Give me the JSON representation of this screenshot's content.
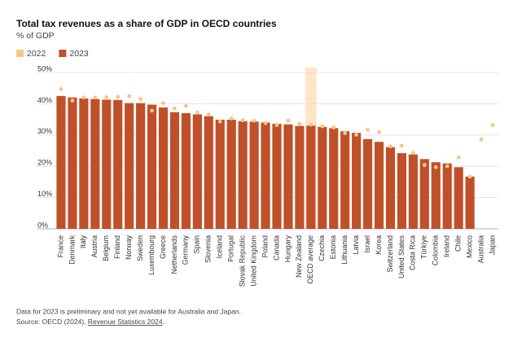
{
  "chart_data": {
    "type": "bar",
    "title": "Total tax revenues as a share of GDP in OECD countries",
    "subtitle": "% of GDP",
    "categories": [
      "France",
      "Denmark",
      "Italy",
      "Austria",
      "Belgium",
      "Finland",
      "Norway",
      "Sweden",
      "Luxembourg",
      "Greece",
      "Netherlands",
      "Germany",
      "Spain",
      "Slovenia",
      "Iceland",
      "Portugal",
      "Slovak Republic",
      "United Kingdom",
      "Poland",
      "Canada",
      "Hungary",
      "New Zealand",
      "OECD average",
      "Czechia",
      "Estonia",
      "Lithuania",
      "Latvia",
      "Israel",
      "Korea",
      "Switzerland",
      "United States",
      "Costa Rica",
      "Türkiye",
      "Colombia",
      "Ireland",
      "Chile",
      "Mexico",
      "Australia",
      "Japan"
    ],
    "series": [
      {
        "name": "2022",
        "color": "#f5c77e",
        "mark": "dot",
        "values": [
          44.7,
          41.0,
          42.0,
          42.0,
          42.1,
          42.2,
          42.4,
          41.5,
          37.8,
          40.2,
          38.5,
          39.3,
          37.2,
          36.6,
          34.3,
          35.3,
          34.7,
          34.6,
          33.8,
          33.2,
          34.6,
          33.6,
          33.3,
          32.8,
          32.4,
          30.6,
          30.1,
          31.7,
          30.9,
          26.4,
          26.6,
          24.3,
          20.4,
          19.7,
          20.0,
          22.8,
          16.7,
          28.6,
          33.2
        ]
      },
      {
        "name": "2023",
        "color": "#c0502a",
        "mark": "bar",
        "values": [
          42.5,
          42.0,
          41.7,
          41.5,
          41.3,
          41.2,
          40.2,
          40.2,
          39.7,
          38.8,
          37.3,
          37.0,
          36.6,
          36.0,
          34.9,
          34.9,
          34.4,
          34.3,
          34.0,
          33.6,
          33.4,
          32.9,
          33.0,
          32.6,
          32.2,
          31.2,
          30.7,
          28.7,
          27.8,
          26.1,
          24.2,
          23.8,
          22.3,
          21.3,
          20.9,
          19.7,
          16.7,
          null,
          null
        ]
      }
    ],
    "highlight": "OECD average",
    "highlight_color": "#fde6c8",
    "ylim": [
      0,
      50
    ],
    "yticks": [
      {
        "value": 0,
        "label": "0%"
      },
      {
        "value": 10,
        "label": "10%"
      },
      {
        "value": 20,
        "label": "20%"
      },
      {
        "value": 30,
        "label": "30%"
      },
      {
        "value": 40,
        "label": "40%"
      },
      {
        "value": 50,
        "label": "50%"
      }
    ],
    "grid": true,
    "notes": [
      "Data for 2023 is preliminary and not yet available for Australia and Japan."
    ],
    "source": {
      "prefix": "Source: OECD (2024), ",
      "link": "Revenue Statistics 2024",
      "suffix": "."
    }
  }
}
